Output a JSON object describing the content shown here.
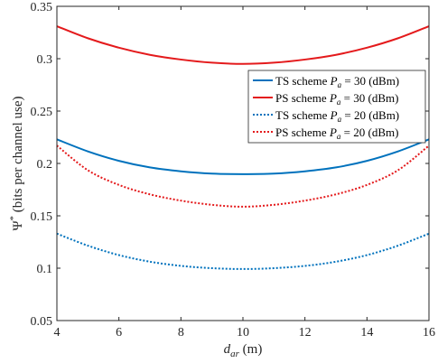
{
  "chart_data": {
    "type": "line",
    "xlabel": "d_ar (m)",
    "ylabel": "Ψ* (bits per channel use)",
    "xlim": [
      4,
      16
    ],
    "ylim": [
      0.05,
      0.35
    ],
    "xticks": [
      "4",
      "6",
      "8",
      "10",
      "12",
      "14",
      "16"
    ],
    "yticks": [
      "0.05",
      "0.1",
      "0.15",
      "0.2",
      "0.25",
      "0.3",
      "0.35"
    ],
    "grid": false,
    "legend_position": "top-right",
    "x": [
      4,
      5,
      6,
      7,
      8,
      9,
      10,
      11,
      12,
      13,
      14,
      15,
      16
    ],
    "series": [
      {
        "name": "TS scheme P_a = 30 (dBm)",
        "color": "#0072BD",
        "style": "solid",
        "values": [
          0.223,
          0.2115,
          0.2025,
          0.1962,
          0.1925,
          0.1903,
          0.1898,
          0.1903,
          0.1925,
          0.1962,
          0.2025,
          0.2115,
          0.223
        ]
      },
      {
        "name": "PS scheme P_a = 30 (dBm)",
        "color": "#E41A1C",
        "style": "solid",
        "values": [
          0.331,
          0.3195,
          0.3105,
          0.3037,
          0.2992,
          0.2962,
          0.295,
          0.2962,
          0.2992,
          0.3037,
          0.3105,
          0.3195,
          0.331
        ]
      },
      {
        "name": "TS scheme P_a = 20 (dBm)",
        "color": "#0072BD",
        "style": "dotted",
        "values": [
          0.133,
          0.1215,
          0.1125,
          0.1062,
          0.1022,
          0.1,
          0.0992,
          0.1,
          0.1022,
          0.1062,
          0.1125,
          0.1215,
          0.133
        ]
      },
      {
        "name": "PS scheme P_a = 20 (dBm)",
        "color": "#E41A1C",
        "style": "dotted",
        "values": [
          0.217,
          0.1935,
          0.1795,
          0.1705,
          0.1645,
          0.1605,
          0.1587,
          0.1605,
          0.1645,
          0.1705,
          0.1795,
          0.1935,
          0.217
        ]
      }
    ]
  }
}
